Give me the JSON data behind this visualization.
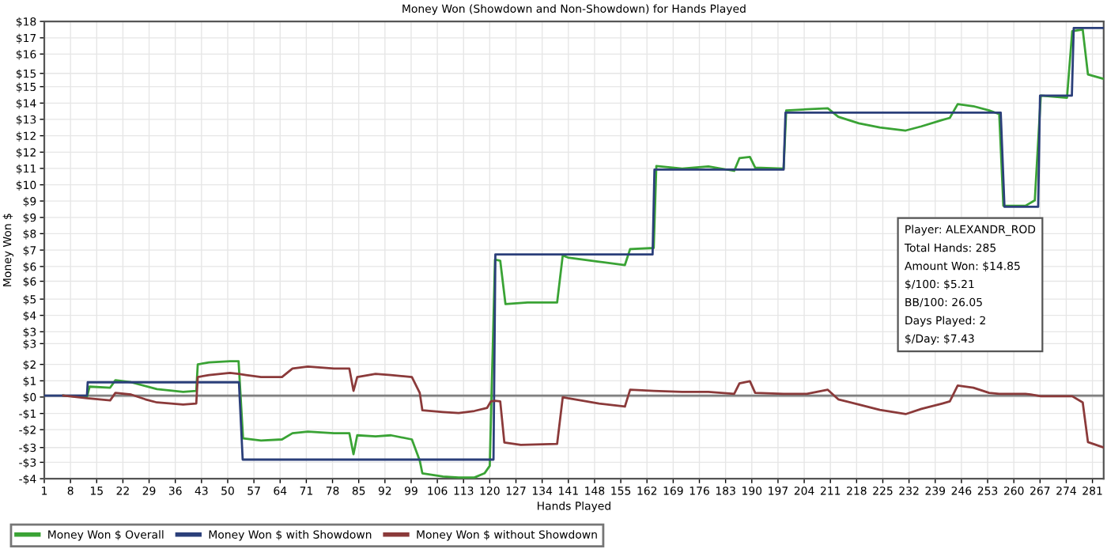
{
  "chart_data": {
    "type": "line",
    "title": "Money Won (Showdown and Non-Showdown) for Hands Played",
    "xlabel": "Hands Played",
    "ylabel": "Money Won $",
    "xlim": [
      1,
      284
    ],
    "xticks": [
      1,
      8,
      15,
      22,
      29,
      36,
      43,
      50,
      57,
      64,
      71,
      78,
      85,
      92,
      99,
      106,
      113,
      120,
      127,
      134,
      141,
      148,
      155,
      162,
      169,
      176,
      183,
      190,
      197,
      204,
      211,
      218,
      225,
      232,
      239,
      246,
      253,
      260,
      267,
      274,
      281
    ],
    "ylim": [
      -4,
      18
    ],
    "yticks": [
      {
        "value": -4,
        "label": "-$4"
      },
      {
        "value": -3.21,
        "label": "-$3"
      },
      {
        "value": -2.5,
        "label": "-$3"
      },
      {
        "value": -1.64,
        "label": "-$2"
      },
      {
        "value": -0.86,
        "label": "-$1"
      },
      {
        "value": -0.07,
        "label": "$0"
      },
      {
        "value": 0.71,
        "label": "$1"
      },
      {
        "value": 1.5,
        "label": "$2"
      },
      {
        "value": 2.5,
        "label": "$3"
      },
      {
        "value": 3.07,
        "label": "$3"
      },
      {
        "value": 3.86,
        "label": "$4"
      },
      {
        "value": 4.64,
        "label": "$5"
      },
      {
        "value": 5.5,
        "label": "$6"
      },
      {
        "value": 6.21,
        "label": "$6"
      },
      {
        "value": 7.0,
        "label": "$7"
      },
      {
        "value": 7.79,
        "label": "$8"
      },
      {
        "value": 8.57,
        "label": "$9"
      },
      {
        "value": 9.36,
        "label": "$9"
      },
      {
        "value": 10.14,
        "label": "$10"
      },
      {
        "value": 10.93,
        "label": "$11"
      },
      {
        "value": 11.71,
        "label": "$12"
      },
      {
        "value": 12.5,
        "label": "$12"
      },
      {
        "value": 13.29,
        "label": "$13"
      },
      {
        "value": 14.07,
        "label": "$14"
      },
      {
        "value": 14.86,
        "label": "$15"
      },
      {
        "value": 15.5,
        "label": "$15"
      },
      {
        "value": 16.43,
        "label": "$16"
      },
      {
        "value": 17.21,
        "label": "$17"
      },
      {
        "value": 18,
        "label": "$18"
      }
    ],
    "grid": true,
    "legend": "bottom",
    "marker": "none",
    "line_style": "solid",
    "ref_lines": [
      {
        "axis": "y",
        "value": 0,
        "color": "#808080"
      }
    ],
    "series": [
      {
        "name": "Money Won $ Overall",
        "color": "#3aa335",
        "x": [
          6.1,
          12.4,
          13.1,
          18.6,
          20.0,
          24.2,
          31.1,
          38.1,
          41.6,
          42.0,
          45.0,
          50.6,
          52.9,
          54.1,
          58.9,
          64.5,
          67.3,
          71.4,
          78.4,
          82.5,
          83.6,
          84.6,
          89.5,
          93.6,
          99.2,
          101.3,
          102.0,
          107.5,
          111.7,
          115.9,
          118.6,
          120.0,
          121.4,
          122.8,
          124.2,
          130.1,
          138.0,
          139.5,
          140.9,
          149.2,
          156.1,
          157.5,
          163.8,
          164.5,
          171.4,
          178.4,
          185.3,
          186.7,
          189.5,
          190.9,
          198.5,
          199.2,
          204.7,
          210.3,
          213.1,
          218.6,
          224.2,
          231.1,
          235.3,
          240.9,
          242.9,
          245.0,
          249.2,
          253.4,
          256.1,
          257.2,
          263.1,
          265.6,
          267.2,
          274.2,
          275.6,
          278.4,
          279.8,
          283.9
        ],
        "values": [
          0,
          -0.08,
          0.43,
          0.38,
          0.74,
          0.64,
          0.31,
          0.18,
          0.23,
          1.5,
          1.6,
          1.65,
          1.65,
          -2.06,
          -2.16,
          -2.11,
          -1.81,
          -1.73,
          -1.81,
          -1.81,
          -2.82,
          -1.91,
          -1.96,
          -1.91,
          -2.11,
          -3.13,
          -3.74,
          -3.89,
          -3.94,
          -3.94,
          -3.74,
          -3.38,
          6.54,
          6.49,
          4.4,
          4.48,
          4.48,
          6.74,
          6.64,
          6.44,
          6.28,
          7.05,
          7.1,
          11.04,
          10.92,
          11.02,
          10.81,
          11.42,
          11.48,
          10.97,
          10.92,
          13.72,
          13.77,
          13.82,
          13.41,
          13.1,
          12.9,
          12.75,
          12.95,
          13.26,
          13.36,
          14.02,
          13.92,
          13.72,
          13.54,
          9.13,
          9.13,
          9.39,
          14.43,
          14.33,
          17.53,
          17.61,
          15.45,
          15.24
        ]
      },
      {
        "name": "Money Won $ with Showdown",
        "color": "#2b3f7a",
        "x": [
          1,
          12.4,
          12.6,
          53,
          54,
          121,
          121.5,
          163.5,
          164,
          198.5,
          199,
          256.5,
          257.5,
          266.5,
          267,
          275.5,
          276,
          284
        ],
        "values": [
          0,
          0,
          0.64,
          0.64,
          -3.08,
          -3.08,
          6.79,
          6.79,
          10.87,
          10.87,
          13.61,
          13.61,
          9.08,
          9.08,
          14.43,
          14.43,
          17.68,
          17.68
        ]
      },
      {
        "name": "Money Won $ without Showdown",
        "color": "#8b3a3a",
        "x": [
          6.1,
          12.4,
          18.6,
          20.0,
          24.2,
          28.0,
          31.1,
          38.1,
          41.6,
          42.0,
          45.0,
          50.6,
          52.9,
          54.9,
          58.9,
          64.5,
          67.3,
          71.4,
          78.4,
          82.5,
          83.6,
          84.6,
          89.5,
          93.6,
          99.2,
          101.3,
          102.0,
          107.5,
          111.7,
          115.9,
          119.3,
          120.3,
          121.4,
          122.8,
          123.9,
          128.3,
          138.0,
          139.5,
          140.9,
          149.2,
          156.1,
          157.5,
          163.8,
          171.4,
          178.4,
          185.3,
          186.7,
          189.5,
          190.9,
          198.5,
          204.7,
          210.3,
          213.1,
          218.6,
          224.2,
          231.1,
          235.3,
          240.9,
          242.9,
          245.0,
          249.2,
          253.4,
          256.1,
          263.1,
          264.5,
          267.2,
          275.6,
          278.4,
          279.8,
          283.9
        ],
        "values": [
          0,
          -0.13,
          -0.23,
          0.13,
          0.05,
          -0.18,
          -0.33,
          -0.43,
          -0.38,
          0.89,
          0.99,
          1.09,
          1.04,
          0.99,
          0.89,
          0.89,
          1.3,
          1.4,
          1.3,
          1.3,
          0.23,
          0.89,
          1.04,
          0.99,
          0.89,
          0.13,
          -0.71,
          -0.79,
          -0.84,
          -0.74,
          -0.59,
          -0.28,
          -0.25,
          -0.28,
          -2.26,
          -2.37,
          -2.32,
          -0.08,
          -0.13,
          -0.38,
          -0.53,
          0.28,
          0.23,
          0.18,
          0.18,
          0.08,
          0.59,
          0.69,
          0.13,
          0.08,
          0.08,
          0.28,
          -0.18,
          -0.43,
          -0.69,
          -0.89,
          -0.64,
          -0.38,
          -0.28,
          0.48,
          0.38,
          0.13,
          0.08,
          0.08,
          0.05,
          -0.03,
          -0.03,
          -0.33,
          -2.24,
          -2.49
        ]
      }
    ],
    "annotations": [
      "Player: ALEXANDR_ROD",
      "Total Hands: 285",
      "Amount Won: $14.85",
      "$/100: $5.21",
      "BB/100: 26.05",
      "Days Played: 2",
      "$/Day: $7.43"
    ]
  }
}
